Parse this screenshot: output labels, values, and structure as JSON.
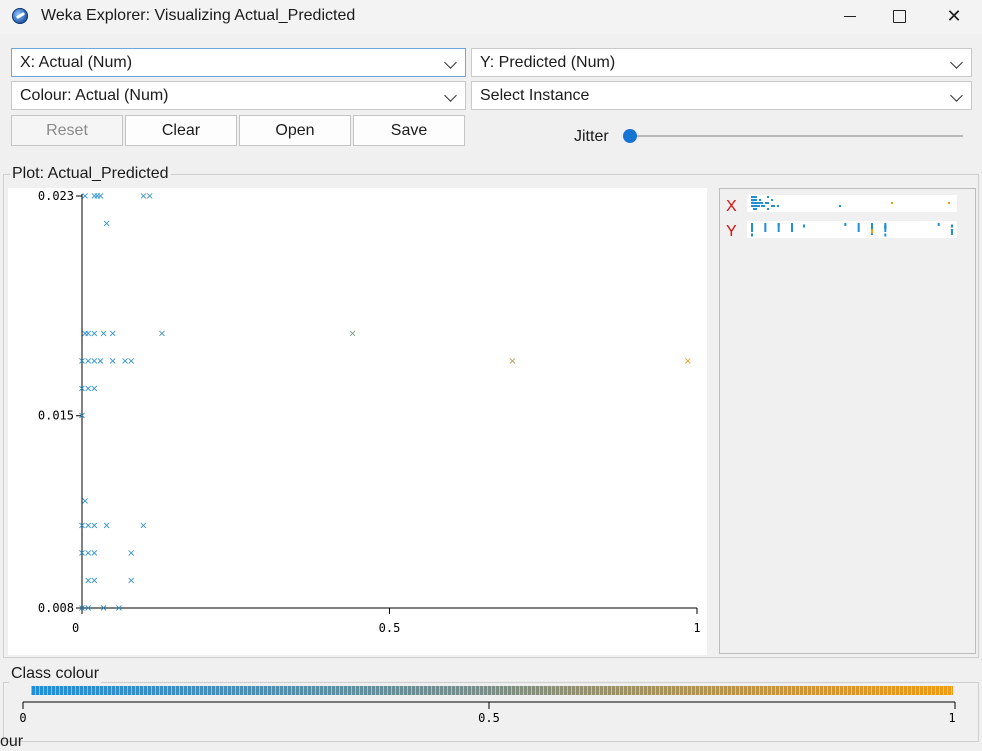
{
  "window": {
    "title": "Weka Explorer: Visualizing Actual_Predicted"
  },
  "controls": {
    "x_axis": "X: Actual (Num)",
    "y_axis": "Y: Predicted (Num)",
    "colour": "Colour: Actual (Num)",
    "instance": "Select Instance",
    "buttons": {
      "reset": "Reset",
      "clear": "Clear",
      "open": "Open",
      "save": "Save"
    },
    "jitter_label": "Jitter",
    "jitter_value": 0
  },
  "plot": {
    "label": "Plot: Actual_Predicted"
  },
  "legend": {
    "x_letter": "X",
    "y_letter": "Y"
  },
  "class_colour": {
    "label": "Class colour",
    "ticks": [
      "0",
      "0.5",
      "1"
    ],
    "colors": {
      "low": "#1f8fd8",
      "high": "#f39a10"
    }
  },
  "bottom_stub": "our",
  "chart_data": {
    "type": "scatter",
    "xlabel": "",
    "ylabel": "",
    "xlim": [
      0,
      1
    ],
    "ylim": [
      0.008,
      0.023
    ],
    "x_ticks": [
      "0",
      "0.5",
      "1"
    ],
    "y_ticks": [
      "0.023",
      "0.015",
      "0.008"
    ],
    "marker": "x",
    "color_scale": {
      "low": "#1f8fd8",
      "high": "#f39a10"
    },
    "points": [
      [
        0.005,
        0.023
      ],
      [
        0.02,
        0.023
      ],
      [
        0.025,
        0.023
      ],
      [
        0.03,
        0.023
      ],
      [
        0.1,
        0.023
      ],
      [
        0.11,
        0.023
      ],
      [
        0.04,
        0.022
      ],
      [
        0.005,
        0.018
      ],
      [
        0.01,
        0.018
      ],
      [
        0.02,
        0.018
      ],
      [
        0.035,
        0.018
      ],
      [
        0.05,
        0.018
      ],
      [
        0.13,
        0.018
      ],
      [
        0.44,
        0.018
      ],
      [
        0.0,
        0.017
      ],
      [
        0.01,
        0.017
      ],
      [
        0.02,
        0.017
      ],
      [
        0.03,
        0.017
      ],
      [
        0.05,
        0.017
      ],
      [
        0.07,
        0.017
      ],
      [
        0.08,
        0.017
      ],
      [
        0.7,
        0.017
      ],
      [
        0.985,
        0.017
      ],
      [
        0.0,
        0.016
      ],
      [
        0.01,
        0.016
      ],
      [
        0.02,
        0.016
      ],
      [
        0.0,
        0.015
      ],
      [
        0.005,
        0.0119
      ],
      [
        0.0,
        0.011
      ],
      [
        0.01,
        0.011
      ],
      [
        0.02,
        0.011
      ],
      [
        0.04,
        0.011
      ],
      [
        0.1,
        0.011
      ],
      [
        0.0,
        0.01
      ],
      [
        0.01,
        0.01
      ],
      [
        0.02,
        0.01
      ],
      [
        0.08,
        0.01
      ],
      [
        0.01,
        0.009
      ],
      [
        0.02,
        0.009
      ],
      [
        0.08,
        0.009
      ],
      [
        0.0,
        0.008
      ],
      [
        0.01,
        0.008
      ],
      [
        0.035,
        0.008
      ],
      [
        0.06,
        0.008
      ]
    ]
  }
}
